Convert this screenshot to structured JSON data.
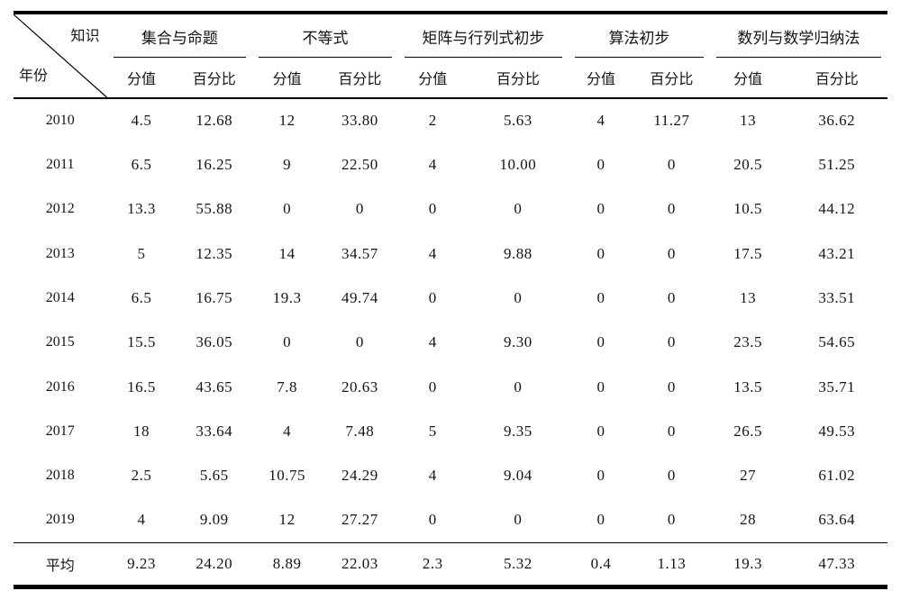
{
  "table": {
    "corner": {
      "top": "知识",
      "bottom": "年份"
    },
    "groups": [
      "集合与命题",
      "不等式",
      "矩阵与行列式初步",
      "算法初步",
      "数列与数学归纳法"
    ],
    "subheaders": [
      "分值",
      "百分比"
    ],
    "rows": [
      {
        "year": "2010",
        "values": [
          "4.5",
          "12.68",
          "12",
          "33.80",
          "2",
          "5.63",
          "4",
          "11.27",
          "13",
          "36.62"
        ]
      },
      {
        "year": "2011",
        "values": [
          "6.5",
          "16.25",
          "9",
          "22.50",
          "4",
          "10.00",
          "0",
          "0",
          "20.5",
          "51.25"
        ]
      },
      {
        "year": "2012",
        "values": [
          "13.3",
          "55.88",
          "0",
          "0",
          "0",
          "0",
          "0",
          "0",
          "10.5",
          "44.12"
        ]
      },
      {
        "year": "2013",
        "values": [
          "5",
          "12.35",
          "14",
          "34.57",
          "4",
          "9.88",
          "0",
          "0",
          "17.5",
          "43.21"
        ]
      },
      {
        "year": "2014",
        "values": [
          "6.5",
          "16.75",
          "19.3",
          "49.74",
          "0",
          "0",
          "0",
          "0",
          "13",
          "33.51"
        ]
      },
      {
        "year": "2015",
        "values": [
          "15.5",
          "36.05",
          "0",
          "0",
          "4",
          "9.30",
          "0",
          "0",
          "23.5",
          "54.65"
        ]
      },
      {
        "year": "2016",
        "values": [
          "16.5",
          "43.65",
          "7.8",
          "20.63",
          "0",
          "0",
          "0",
          "0",
          "13.5",
          "35.71"
        ]
      },
      {
        "year": "2017",
        "values": [
          "18",
          "33.64",
          "4",
          "7.48",
          "5",
          "9.35",
          "0",
          "0",
          "26.5",
          "49.53"
        ]
      },
      {
        "year": "2018",
        "values": [
          "2.5",
          "5.65",
          "10.75",
          "24.29",
          "4",
          "9.04",
          "0",
          "0",
          "27",
          "61.02"
        ]
      },
      {
        "year": "2019",
        "values": [
          "4",
          "9.09",
          "12",
          "27.27",
          "0",
          "0",
          "0",
          "0",
          "28",
          "63.64"
        ]
      },
      {
        "year": "平均",
        "is_average": true,
        "values": [
          "9.23",
          "24.20",
          "8.89",
          "22.03",
          "2.3",
          "5.32",
          "0.4",
          "1.13",
          "19.3",
          "47.33"
        ]
      }
    ]
  },
  "chart_data": {
    "type": "table",
    "corner_labels": {
      "top_right": "知识",
      "bottom_left": "年份"
    },
    "column_groups": [
      "集合与命题",
      "不等式",
      "矩阵与行列式初步",
      "算法初步",
      "数列与数学归纳法"
    ],
    "sub_columns": [
      "分值",
      "百分比"
    ],
    "rows": [
      {
        "year": "2010",
        "values": [
          4.5,
          12.68,
          12,
          33.8,
          2,
          5.63,
          4,
          11.27,
          13,
          36.62
        ]
      },
      {
        "year": "2011",
        "values": [
          6.5,
          16.25,
          9,
          22.5,
          4,
          10.0,
          0,
          0,
          20.5,
          51.25
        ]
      },
      {
        "year": "2012",
        "values": [
          13.3,
          55.88,
          0,
          0,
          0,
          0,
          0,
          0,
          10.5,
          44.12
        ]
      },
      {
        "year": "2013",
        "values": [
          5,
          12.35,
          14,
          34.57,
          4,
          9.88,
          0,
          0,
          17.5,
          43.21
        ]
      },
      {
        "year": "2014",
        "values": [
          6.5,
          16.75,
          19.3,
          49.74,
          0,
          0,
          0,
          0,
          13,
          33.51
        ]
      },
      {
        "year": "2015",
        "values": [
          15.5,
          36.05,
          0,
          0,
          4,
          9.3,
          0,
          0,
          23.5,
          54.65
        ]
      },
      {
        "year": "2016",
        "values": [
          16.5,
          43.65,
          7.8,
          20.63,
          0,
          0,
          0,
          0,
          13.5,
          35.71
        ]
      },
      {
        "year": "2017",
        "values": [
          18,
          33.64,
          4,
          7.48,
          5,
          9.35,
          0,
          0,
          26.5,
          49.53
        ]
      },
      {
        "year": "2018",
        "values": [
          2.5,
          5.65,
          10.75,
          24.29,
          4,
          9.04,
          0,
          0,
          27,
          61.02
        ]
      },
      {
        "year": "2019",
        "values": [
          4,
          9.09,
          12,
          27.27,
          0,
          0,
          0,
          0,
          28,
          63.64
        ]
      },
      {
        "year": "平均",
        "values": [
          9.23,
          24.2,
          8.89,
          22.03,
          2.3,
          5.32,
          0.4,
          1.13,
          19.3,
          47.33
        ]
      }
    ]
  }
}
